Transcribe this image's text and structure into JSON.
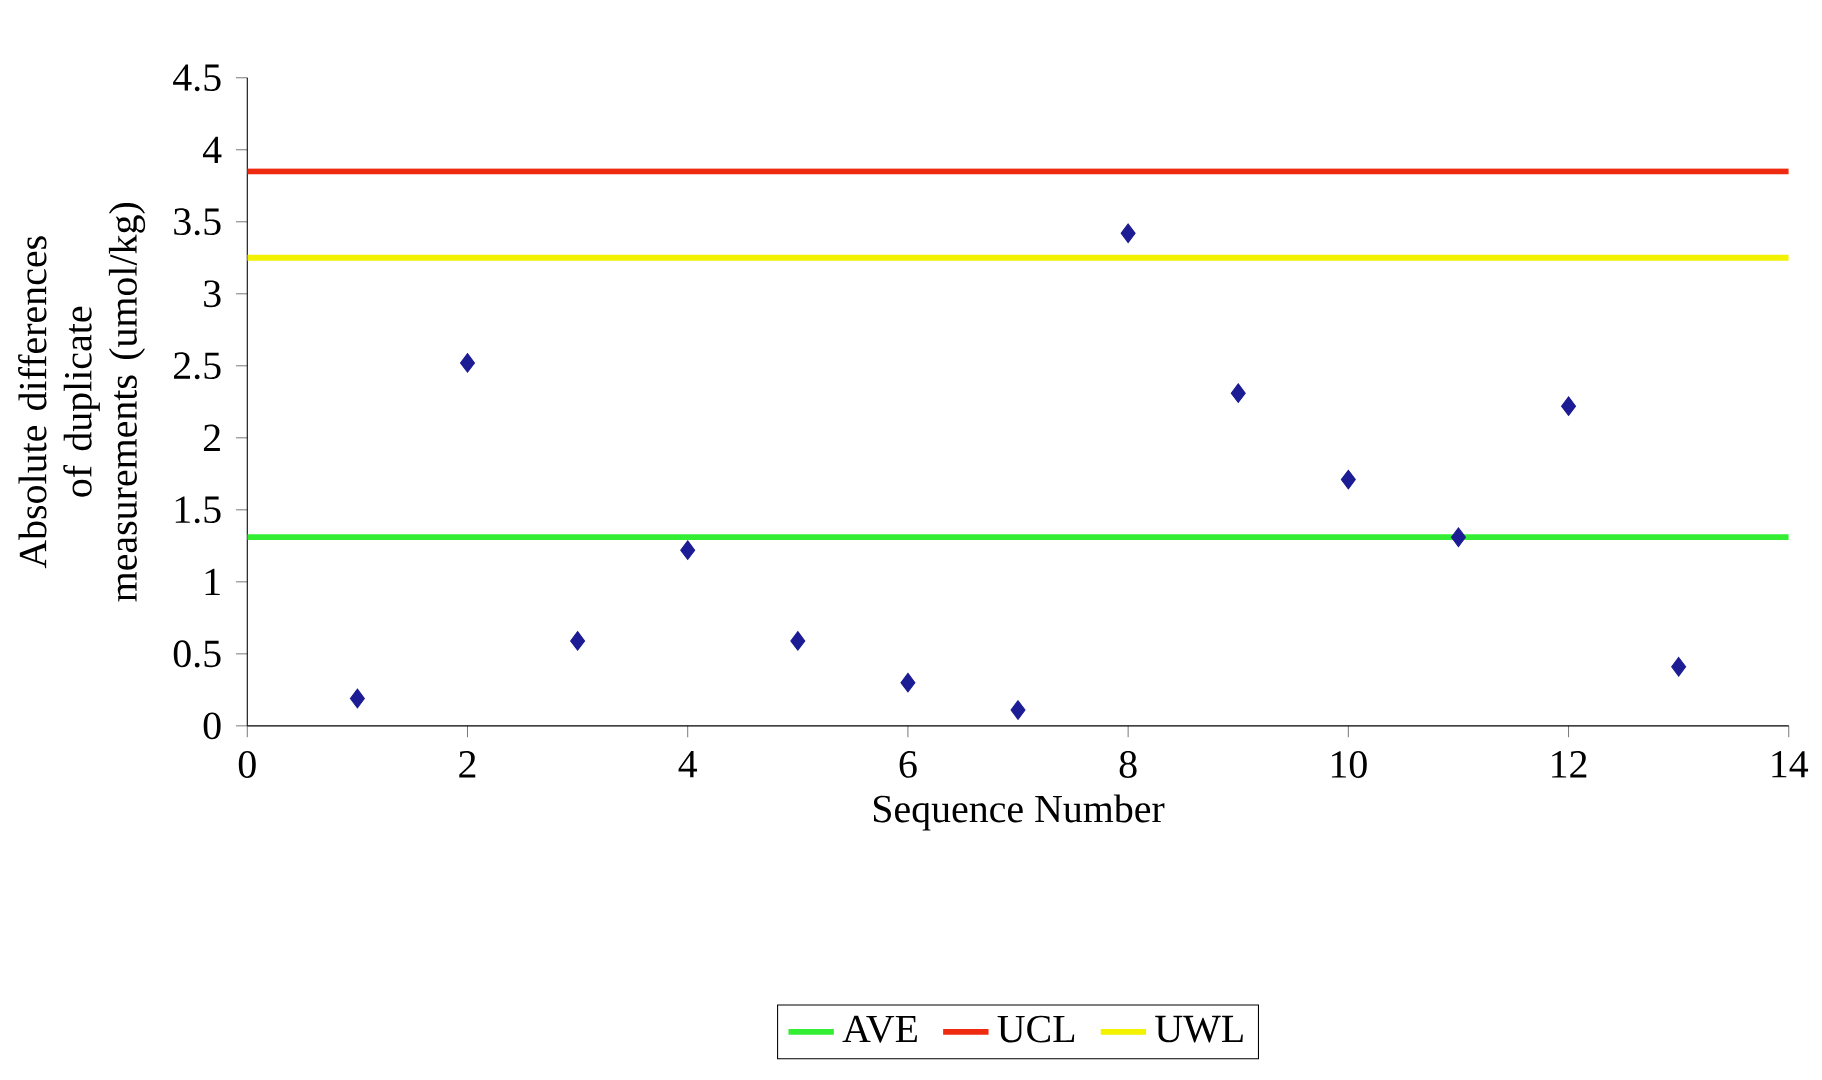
{
  "chart_data": {
    "type": "scatter",
    "xlabel": "Sequence Number",
    "ylabel": "Absolute differences of duplicate measurements (umol/kg)",
    "x": [
      1,
      2,
      3,
      4,
      5,
      6,
      7,
      8,
      9,
      10,
      11,
      12,
      13
    ],
    "values": [
      0.19,
      2.52,
      0.59,
      1.22,
      0.59,
      0.3,
      0.11,
      3.42,
      2.31,
      1.71,
      1.31,
      2.22,
      0.41
    ],
    "color": "#1c1c94",
    "marker": "diamond",
    "grid": false,
    "legend": "bottom",
    "xlim": [
      0,
      14
    ],
    "xticks": [
      0,
      2,
      4,
      6,
      8,
      10,
      12,
      14
    ],
    "ylim": [
      0,
      4.5
    ],
    "yticks": [
      0,
      0.5,
      1,
      1.5,
      2,
      2.5,
      3,
      3.5,
      4,
      4.5
    ],
    "ref_lines": [
      {
        "axis": "y",
        "value": 1.31,
        "label": "AVE",
        "color": "#33ee33"
      },
      {
        "axis": "y",
        "value": 3.85,
        "label": "UCL",
        "color": "#ee2a10"
      },
      {
        "axis": "y",
        "value": 3.25,
        "label": "UWL",
        "color": "#f2f200"
      }
    ]
  }
}
